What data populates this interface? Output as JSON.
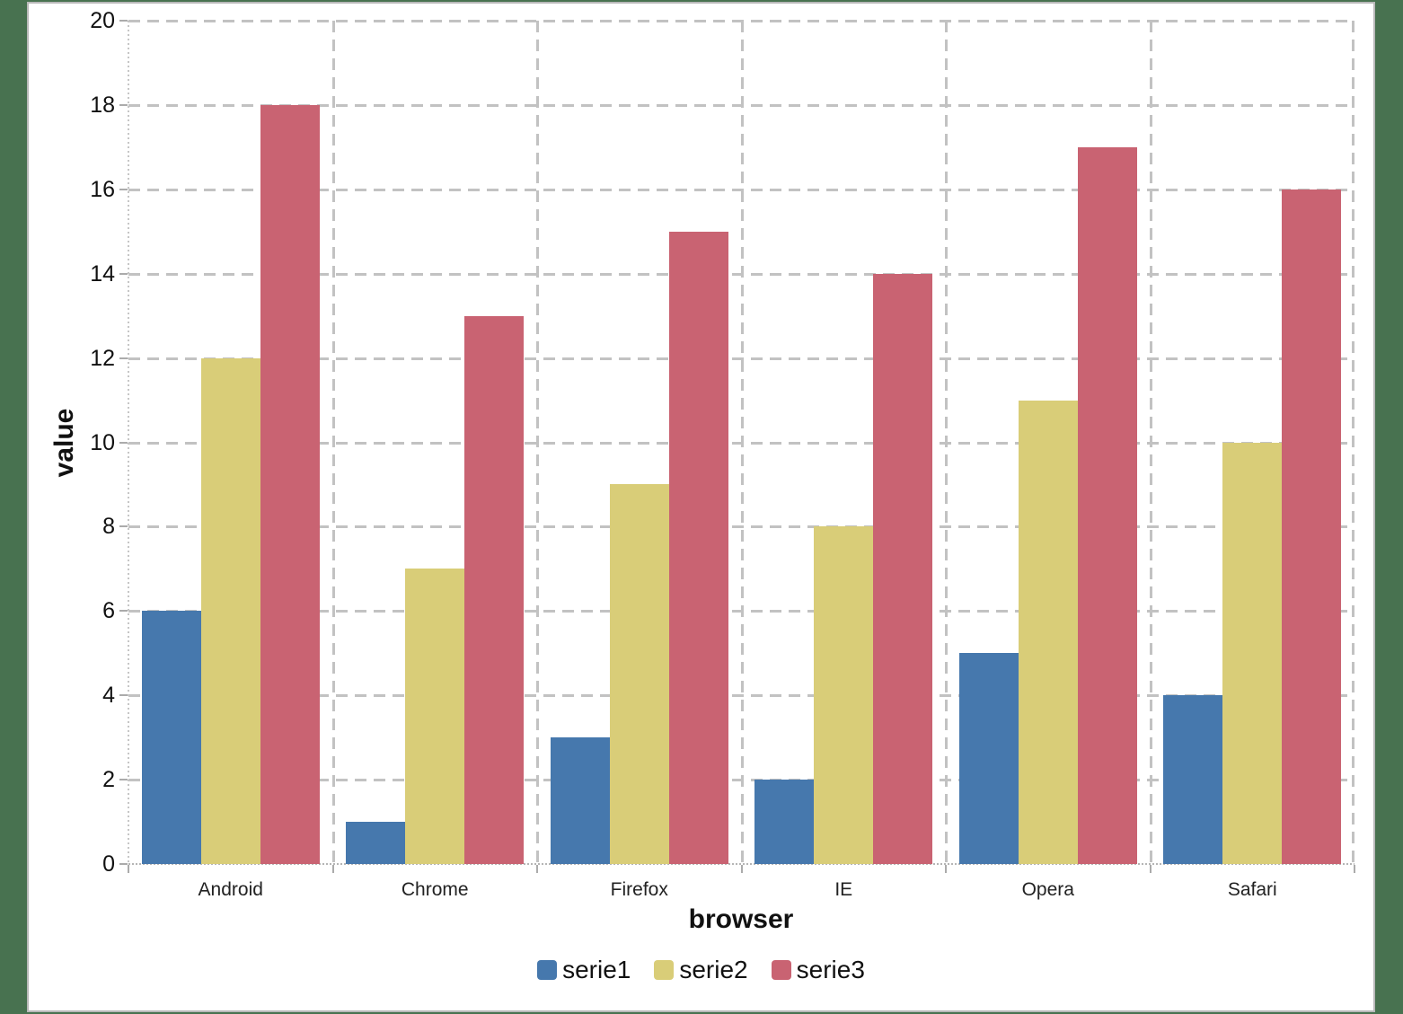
{
  "chart_data": {
    "type": "bar",
    "title": "",
    "categories": [
      "Android",
      "Chrome",
      "Firefox",
      "IE",
      "Opera",
      "Safari"
    ],
    "series": [
      {
        "name": "serie1",
        "color": "#4678ad",
        "values": [
          6,
          1,
          3,
          2,
          5,
          4
        ]
      },
      {
        "name": "serie2",
        "color": "#d9cd78",
        "values": [
          12,
          7,
          9,
          8,
          11,
          10
        ]
      },
      {
        "name": "serie3",
        "color": "#c96372",
        "values": [
          18,
          13,
          15,
          14,
          17,
          16
        ]
      }
    ],
    "xlabel": "browser",
    "ylabel": "value",
    "ylim": [
      0,
      20
    ],
    "ytick_step": 2,
    "yticks": [
      0,
      2,
      4,
      6,
      8,
      10,
      12,
      14,
      16,
      18,
      20
    ],
    "grid": "dashed-horizontal-and-vertical",
    "legend_position": "bottom",
    "legend": [
      "serie1",
      "serie2",
      "serie3"
    ]
  },
  "colors": {
    "page_background": "#487250",
    "panel_background": "#ffffff",
    "panel_border": "#b9b9b9",
    "gridline": "#c2c2c2",
    "axis": "#ababab",
    "text": "#111111"
  }
}
